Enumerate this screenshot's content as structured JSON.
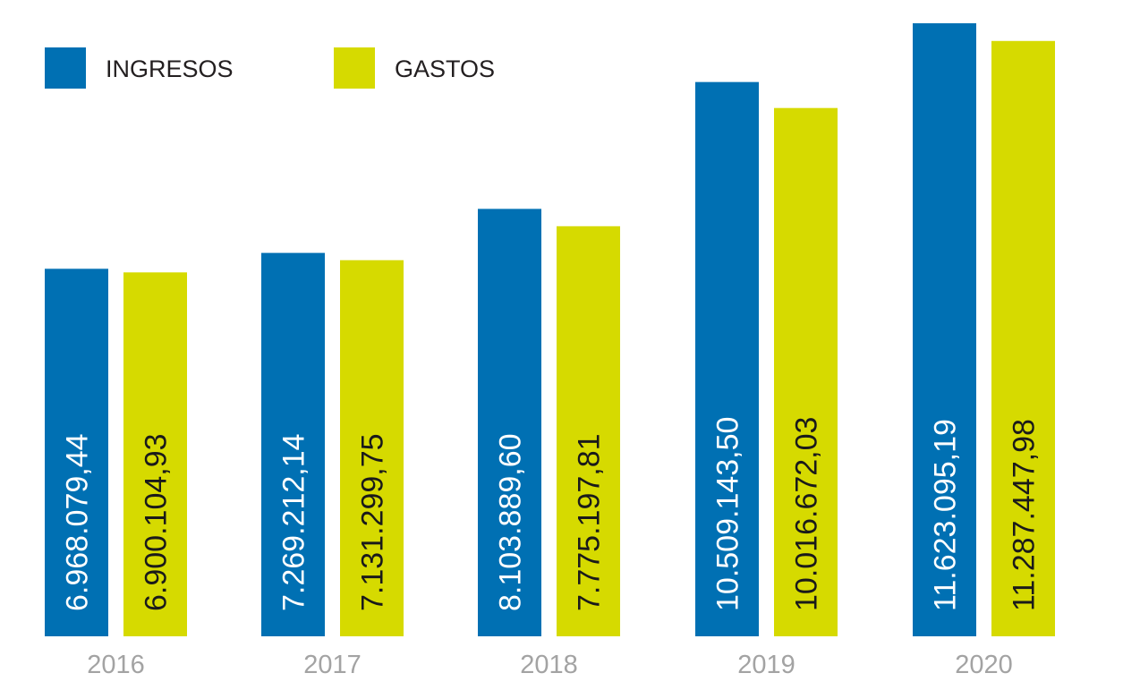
{
  "colors": {
    "ingresos": "#0070b3",
    "gastos": "#d6da00",
    "ingresos_label_text": "#ffffff",
    "gastos_label_text": "#1a1a1a",
    "year_label_text": "#a3a3a3"
  },
  "legend": {
    "ingresos_label": "INGRESOS",
    "gastos_label": "GASTOS"
  },
  "chart_data": {
    "type": "bar",
    "title": "",
    "xlabel": "",
    "ylabel": "",
    "categories": [
      "2016",
      "2017",
      "2018",
      "2019",
      "2020"
    ],
    "series": [
      {
        "name": "INGRESOS",
        "values": [
          6968079.44,
          7269212.14,
          8103889.6,
          10509143.5,
          11623095.19
        ],
        "labels": [
          "6.968.079,44",
          "7.269.212,14",
          "8.103.889,60",
          "10.509.143,50",
          "11.623.095,19"
        ]
      },
      {
        "name": "GASTOS",
        "values": [
          6900104.93,
          7131299.75,
          7775197.81,
          10016672.03,
          11287447.98
        ],
        "labels": [
          "6.900.104,93",
          "7.131.299,75",
          "7.775.197,81",
          "10.016.672,03",
          "11.287.447,98"
        ]
      }
    ],
    "grid": false,
    "legend_position": "top-left"
  }
}
